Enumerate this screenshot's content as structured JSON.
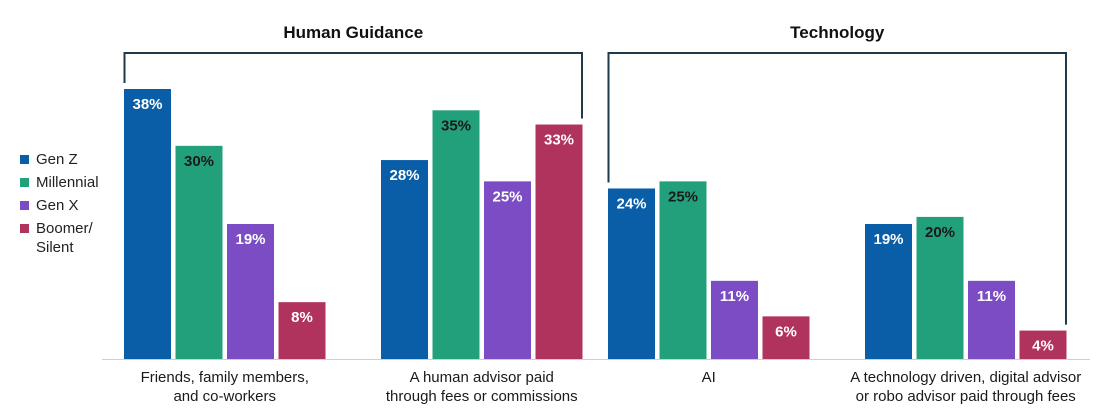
{
  "chart_data": {
    "type": "bar",
    "categories": [
      [
        "Friends, family members,",
        "and co-workers"
      ],
      [
        "A human advisor paid",
        "through fees or commissions"
      ],
      [
        "AI"
      ],
      [
        "A technology driven, digital advisor",
        "or robo advisor paid through fees"
      ]
    ],
    "groups": [
      {
        "label": "Human Guidance",
        "categories": [
          0,
          1
        ]
      },
      {
        "label": "Technology",
        "categories": [
          2,
          3
        ]
      }
    ],
    "series": [
      {
        "name": "Gen Z",
        "color": "#0a5ea8",
        "label_color": "#ffffff",
        "values": [
          38,
          28,
          24,
          19
        ]
      },
      {
        "name": "Millennial",
        "color": "#22a07b",
        "label_color": "#1a1a1a",
        "values": [
          30,
          35,
          25,
          20
        ]
      },
      {
        "name": "Gen X",
        "color": "#7b4cc4",
        "label_color": "#ffffff",
        "values": [
          19,
          25,
          11,
          11
        ]
      },
      {
        "name": "Boomer/ Silent",
        "color": "#b0335e",
        "label_color": "#ffffff",
        "values": [
          8,
          33,
          6,
          4
        ]
      }
    ],
    "value_suffix": "%",
    "ylim": [
      0,
      38
    ],
    "legend_position": "left",
    "bracket_color": "#1f3a4a",
    "grid": false
  }
}
